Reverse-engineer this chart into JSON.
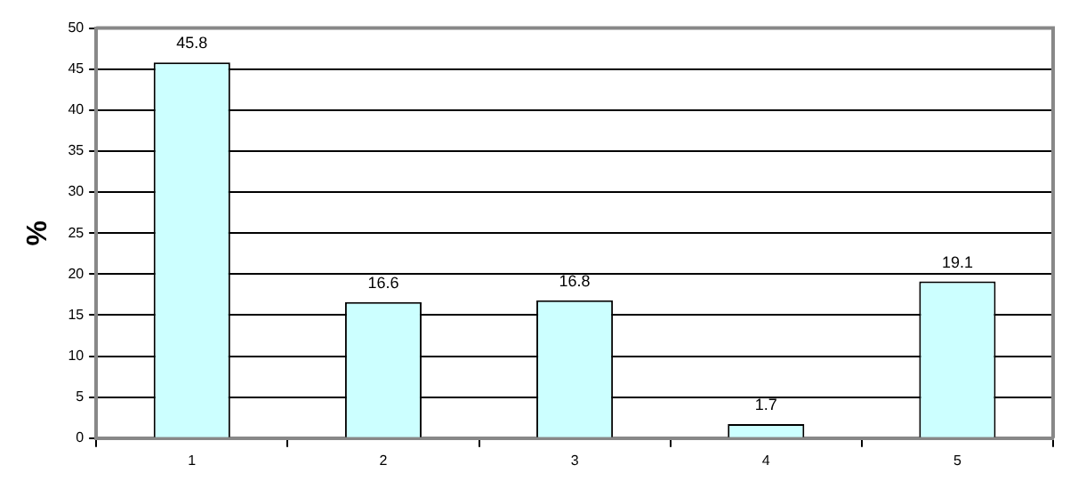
{
  "chart_data": {
    "type": "bar",
    "ylabel": "%",
    "categories": [
      "1",
      "2",
      "3",
      "4",
      "5"
    ],
    "values": [
      45.8,
      16.6,
      16.8,
      1.7,
      19.1
    ],
    "color": "#ccffff",
    "ylim": [
      0,
      50
    ],
    "yticks": [
      0,
      5,
      10,
      15,
      20,
      25,
      30,
      35,
      40,
      45,
      50
    ],
    "grid": "y",
    "legend": false,
    "data_labels": true
  }
}
